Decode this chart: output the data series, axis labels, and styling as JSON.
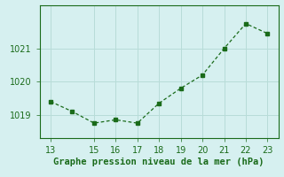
{
  "x": [
    13,
    14,
    15,
    16,
    17,
    18,
    19,
    20,
    21,
    22,
    23
  ],
  "y": [
    1019.4,
    1019.1,
    1018.75,
    1018.85,
    1018.75,
    1019.35,
    1019.8,
    1020.2,
    1021.0,
    1021.75,
    1021.45
  ],
  "line_color": "#1a6b1a",
  "marker": "s",
  "marker_size": 2.5,
  "background_color": "#d6f0f0",
  "grid_color": "#b8dcd8",
  "xlabel": "Graphe pression niveau de la mer (hPa)",
  "xlabel_color": "#1a6b1a",
  "xlabel_fontsize": 7.5,
  "tick_color": "#1a6b1a",
  "tick_fontsize": 7,
  "yticks": [
    1019,
    1020,
    1021
  ],
  "xticks": [
    13,
    15,
    16,
    17,
    18,
    19,
    20,
    21,
    22,
    23
  ],
  "ylim": [
    1018.3,
    1022.3
  ],
  "xlim": [
    12.5,
    23.5
  ]
}
